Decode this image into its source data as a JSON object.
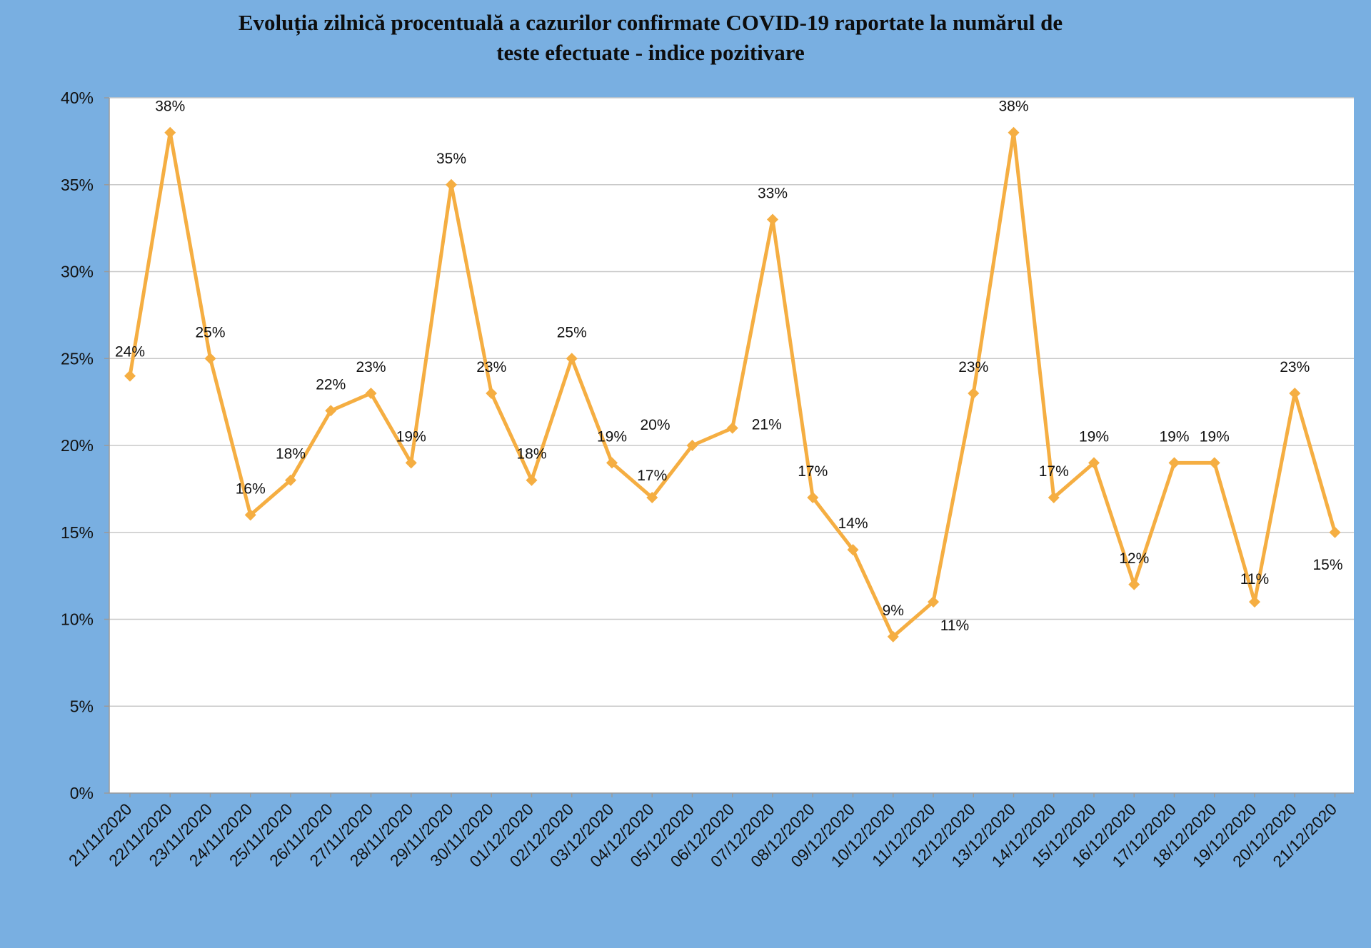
{
  "chart_data": {
    "type": "line",
    "title": "Evoluția zilnică procentuală a cazurilor confirmate COVID-19 raportate la numărul de teste efectuate - indice pozitivare",
    "title_lines": [
      "Evoluția zilnică procentuală a cazurilor confirmate COVID-19 raportate la numărul de",
      "teste efectuate - indice pozitivare"
    ],
    "xlabel": "",
    "ylabel": "",
    "ylim": [
      0,
      40
    ],
    "y_tick_labels": [
      "0%",
      "5%",
      "10%",
      "15%",
      "20%",
      "25%",
      "30%",
      "35%",
      "40%"
    ],
    "grid": true,
    "legend": "none",
    "categories": [
      "21/11/2020",
      "22/11/2020",
      "23/11/2020",
      "24/11/2020",
      "25/11/2020",
      "26/11/2020",
      "27/11/2020",
      "28/11/2020",
      "29/11/2020",
      "30/11/2020",
      "01/12/2020",
      "02/12/2020",
      "03/12/2020",
      "04/12/2020",
      "05/12/2020",
      "06/12/2020",
      "07/12/2020",
      "08/12/2020",
      "09/12/2020",
      "10/12/2020",
      "11/12/2020",
      "12/12/2020",
      "13/12/2020",
      "14/12/2020",
      "15/12/2020",
      "16/12/2020",
      "17/12/2020",
      "18/12/2020",
      "19/12/2020",
      "20/12/2020",
      "21/12/2020"
    ],
    "series": [
      {
        "values": [
          24,
          38,
          25,
          16,
          18,
          22,
          23,
          19,
          35,
          23,
          18,
          25,
          19,
          17,
          20,
          21,
          33,
          17,
          14,
          9,
          11,
          23,
          38,
          17,
          19,
          12,
          19,
          19,
          11,
          23,
          15
        ],
        "data_labels": [
          "24%",
          "38%",
          "25%",
          "16%",
          "18%",
          "22%",
          "23%",
          "19%",
          "35%",
          "23%",
          "18%",
          "25%",
          "19%",
          "17%",
          "20%",
          "21%",
          "33%",
          "17%",
          "14%",
          "9%",
          "11%",
          "23%",
          "38%",
          "17%",
          "19%",
          "12%",
          "19%",
          "19%",
          "11%",
          "23%",
          "15%"
        ]
      }
    ],
    "colors": {
      "background": "#79afe1",
      "plot_area": "#ffffff",
      "line": "#f5ae42",
      "gridline": "#c8c8c8",
      "text": "#111111"
    }
  }
}
